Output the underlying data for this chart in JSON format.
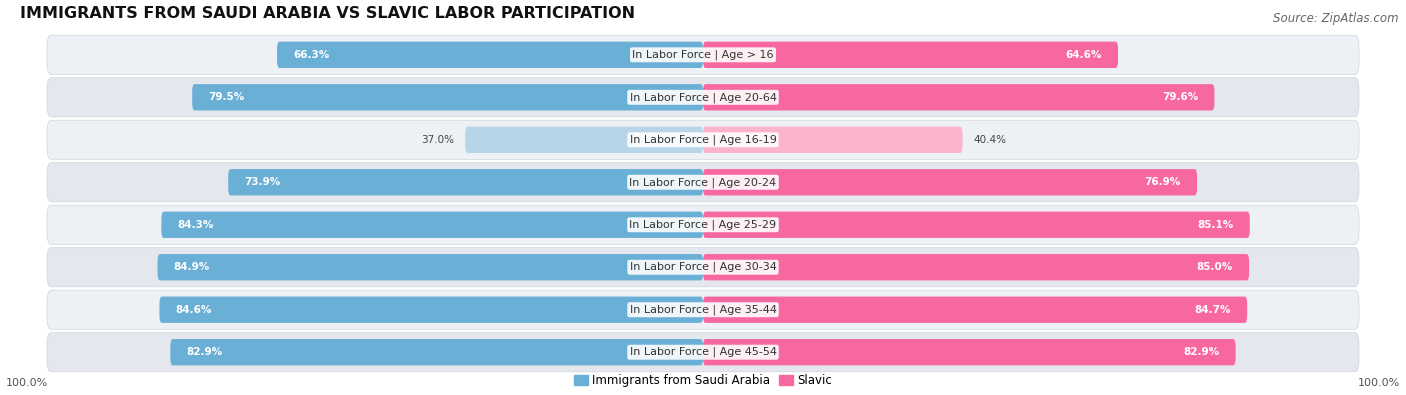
{
  "title": "IMMIGRANTS FROM SAUDI ARABIA VS SLAVIC LABOR PARTICIPATION",
  "source": "Source: ZipAtlas.com",
  "categories": [
    "In Labor Force | Age > 16",
    "In Labor Force | Age 20-64",
    "In Labor Force | Age 16-19",
    "In Labor Force | Age 20-24",
    "In Labor Force | Age 25-29",
    "In Labor Force | Age 30-34",
    "In Labor Force | Age 35-44",
    "In Labor Force | Age 45-54"
  ],
  "saudi_values": [
    66.3,
    79.5,
    37.0,
    73.9,
    84.3,
    84.9,
    84.6,
    82.9
  ],
  "slavic_values": [
    64.6,
    79.6,
    40.4,
    76.9,
    85.1,
    85.0,
    84.7,
    82.9
  ],
  "saudi_color": "#6aafd6",
  "slavic_color": "#f768a1",
  "saudi_color_light": "#b8d4e8",
  "slavic_color_light": "#fbb4ca",
  "title_fontsize": 11.5,
  "source_fontsize": 8.5,
  "label_fontsize": 8.0,
  "value_fontsize": 7.5,
  "legend_fontsize": 8.5,
  "background_color": "#ffffff",
  "row_bg_even": "#f0f2f5",
  "row_bg_odd": "#e8eaed"
}
